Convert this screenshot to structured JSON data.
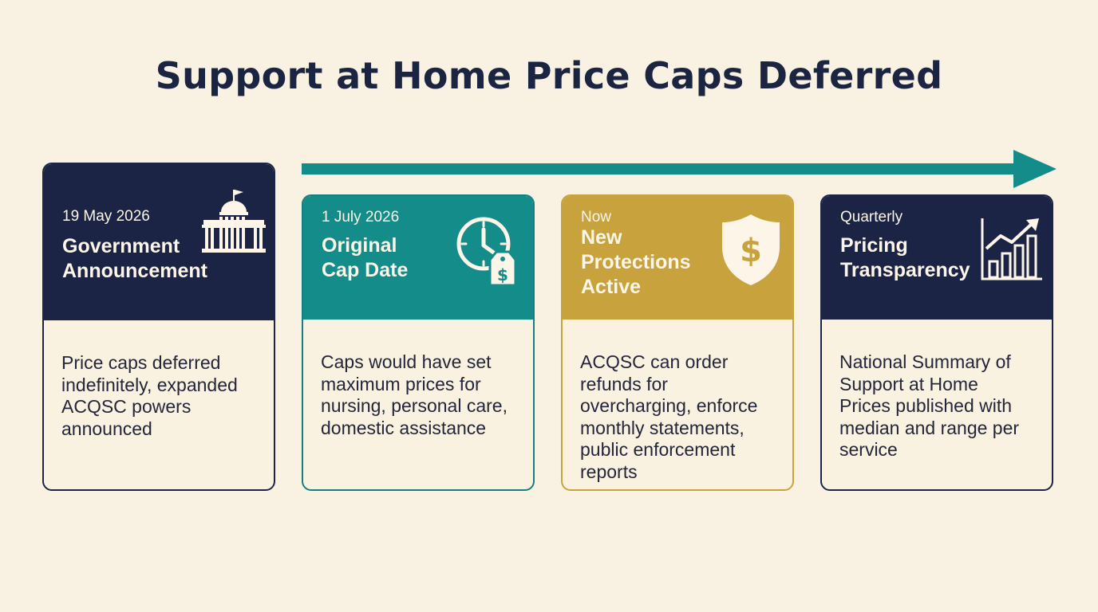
{
  "title": "Support at Home Price Caps Deferred",
  "colors": {
    "navy": "#1c2446",
    "teal": "#148c8a",
    "gold": "#c7a23d",
    "background": "#f9f2e2"
  },
  "cards": [
    {
      "meta": "19 May 2026",
      "name": "Government\nAnnouncement",
      "description": "Price caps deferred indefinitely, expanded ACQSC powers announced",
      "icon": "government-building-icon"
    },
    {
      "meta": "1 July 2026",
      "name": "Original\nCap Date",
      "description": "Caps would have set maximum prices for nursing, personal care, domestic assistance",
      "icon": "clock-price-tag-icon"
    },
    {
      "meta": "Now",
      "name": "New\nProtections\nActive",
      "description": "ACQSC can order refunds for overcharging, enforce monthly statements, public enforcement reports",
      "icon": "shield-dollar-icon"
    },
    {
      "meta": "Quarterly",
      "name": "Pricing\nTransparency",
      "description": "National Summary of Support at Home Prices published with median and range per service",
      "icon": "bar-chart-trend-icon"
    }
  ]
}
